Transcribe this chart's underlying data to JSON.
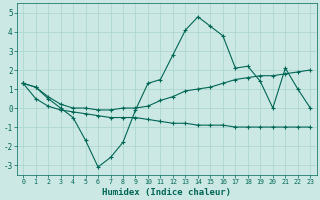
{
  "title": "",
  "xlabel": "Humidex (Indice chaleur)",
  "ylabel": "",
  "bg_color": "#cce8e4",
  "grid_color": "#a8d4cc",
  "line_color": "#006655",
  "xlim": [
    -0.5,
    23.5
  ],
  "ylim": [
    -3.5,
    5.5
  ],
  "yticks": [
    -3,
    -2,
    -1,
    0,
    1,
    2,
    3,
    4,
    5
  ],
  "xticks": [
    0,
    1,
    2,
    3,
    4,
    5,
    6,
    7,
    8,
    9,
    10,
    11,
    12,
    13,
    14,
    15,
    16,
    17,
    18,
    19,
    20,
    21,
    22,
    23
  ],
  "line1_x": [
    0,
    1,
    2,
    3,
    4,
    5,
    6,
    7,
    8,
    9,
    10,
    11,
    12,
    13,
    14,
    15,
    16,
    17,
    18,
    19,
    20,
    21,
    22,
    23
  ],
  "line1_y": [
    1.3,
    1.1,
    0.5,
    0.0,
    -0.5,
    -1.7,
    -3.1,
    -2.6,
    -1.8,
    -0.1,
    1.3,
    1.5,
    2.8,
    4.1,
    4.8,
    4.3,
    3.8,
    2.1,
    2.2,
    1.4,
    0.0,
    2.1,
    1.0,
    0.0
  ],
  "line2_x": [
    0,
    1,
    2,
    3,
    4,
    5,
    6,
    7,
    8,
    9,
    10,
    11,
    12,
    13,
    14,
    15,
    16,
    17,
    18,
    19,
    20,
    21,
    22,
    23
  ],
  "line2_y": [
    1.3,
    1.1,
    0.6,
    0.2,
    0.0,
    0.0,
    -0.1,
    -0.1,
    0.0,
    0.0,
    0.1,
    0.4,
    0.6,
    0.9,
    1.0,
    1.1,
    1.3,
    1.5,
    1.6,
    1.7,
    1.7,
    1.8,
    1.9,
    2.0
  ],
  "line3_x": [
    0,
    1,
    2,
    3,
    4,
    5,
    6,
    7,
    8,
    9,
    10,
    11,
    12,
    13,
    14,
    15,
    16,
    17,
    18,
    19,
    20,
    21,
    22,
    23
  ],
  "line3_y": [
    1.3,
    0.5,
    0.1,
    -0.1,
    -0.2,
    -0.3,
    -0.4,
    -0.5,
    -0.5,
    -0.5,
    -0.6,
    -0.7,
    -0.8,
    -0.8,
    -0.9,
    -0.9,
    -0.9,
    -1.0,
    -1.0,
    -1.0,
    -1.0,
    -1.0,
    -1.0,
    -1.0
  ]
}
